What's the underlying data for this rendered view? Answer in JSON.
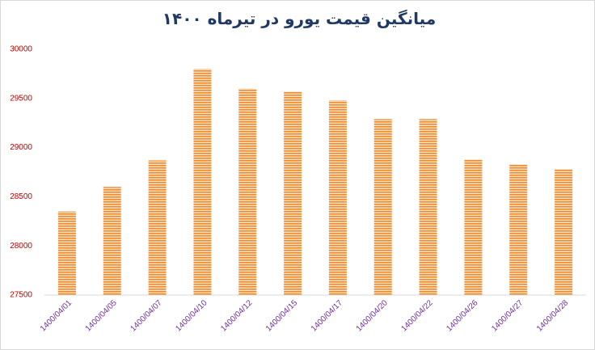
{
  "chart_data": {
    "type": "bar",
    "title": "میانگین قیمت یورو در تیرماه ۱۴۰۰",
    "categories": [
      "1400/04/01",
      "1400/04/05",
      "1400/04/07",
      "1400/04/10",
      "1400/04/12",
      "1400/04/15",
      "1400/04/17",
      "1400/04/20",
      "1400/04/22",
      "1400/04/26",
      "1400/04/27",
      "1400/04/28"
    ],
    "values": [
      28350,
      28600,
      28870,
      29800,
      29600,
      29570,
      29480,
      29290,
      29290,
      28880,
      28830,
      28780
    ],
    "color": "#f08a2c",
    "ylim": [
      27500,
      30000
    ],
    "yticks": [
      27500,
      28000,
      28500,
      29000,
      29500,
      30000
    ],
    "grid": false
  }
}
